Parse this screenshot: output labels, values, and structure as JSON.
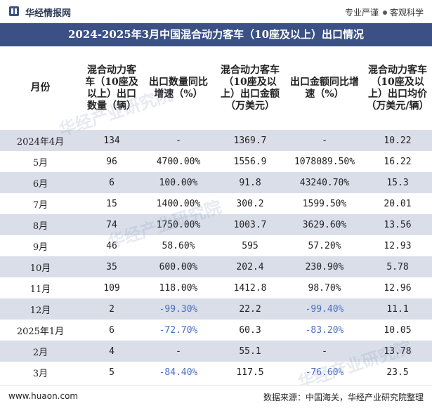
{
  "header": {
    "brand": "华经情报网",
    "slogan_left": "专业严谨",
    "slogan_right": "客观科学"
  },
  "title": "2024-2025年3月中国混合动力客车（10座及以上）出口情况",
  "table": {
    "columns": [
      "月份",
      "混合动力客车（10座及以上）出口数量（辆）",
      "出口数量同比增速（%）",
      "混合动力客车（10座及以上）出口金额（万美元）",
      "出口金额同比增速（%）",
      "混合动力客车（10座及以上）出口均价（万美元/辆）"
    ],
    "rows": [
      {
        "month": "2024年4月",
        "qty": "134",
        "qty_yoy": "-",
        "amount": "1369.7",
        "amount_yoy": "-",
        "price": "10.22"
      },
      {
        "month": "5月",
        "qty": "96",
        "qty_yoy": "4700.00%",
        "amount": "1556.9",
        "amount_yoy": "1078089.50%",
        "price": "16.22"
      },
      {
        "month": "6月",
        "qty": "6",
        "qty_yoy": "100.00%",
        "amount": "91.8",
        "amount_yoy": "43240.70%",
        "price": "15.3"
      },
      {
        "month": "7月",
        "qty": "15",
        "qty_yoy": "1400.00%",
        "amount": "300.2",
        "amount_yoy": "1599.50%",
        "price": "20.01"
      },
      {
        "month": "8月",
        "qty": "74",
        "qty_yoy": "1750.00%",
        "amount": "1003.7",
        "amount_yoy": "3629.60%",
        "price": "13.56"
      },
      {
        "month": "9月",
        "qty": "46",
        "qty_yoy": "58.60%",
        "amount": "595",
        "amount_yoy": "57.20%",
        "price": "12.93"
      },
      {
        "month": "10月",
        "qty": "35",
        "qty_yoy": "600.00%",
        "amount": "202.4",
        "amount_yoy": "230.90%",
        "price": "5.78"
      },
      {
        "month": "11月",
        "qty": "109",
        "qty_yoy": "118.00%",
        "amount": "1412.8",
        "amount_yoy": "98.70%",
        "price": "12.96"
      },
      {
        "month": "12月",
        "qty": "2",
        "qty_yoy": "-99.30%",
        "amount": "22.2",
        "amount_yoy": "-99.40%",
        "price": "11.1"
      },
      {
        "month": "2025年1月",
        "qty": "6",
        "qty_yoy": "-72.70%",
        "amount": "60.3",
        "amount_yoy": "-83.20%",
        "price": "10.05"
      },
      {
        "month": "2月",
        "qty": "4",
        "qty_yoy": "-",
        "amount": "55.1",
        "amount_yoy": "-",
        "price": "13.78"
      },
      {
        "month": "3月",
        "qty": "5",
        "qty_yoy": "-84.40%",
        "amount": "117.5",
        "amount_yoy": "-76.60%",
        "price": "23.5"
      }
    ]
  },
  "footer": {
    "website": "www.huaon.com",
    "source": "数据来源：中国海关，华经产业研究院整理"
  },
  "watermark": "华经产业研究院",
  "colors": {
    "title_bg": "#3b5185",
    "row_stripe": "#d9dee9",
    "negative_text": "#4a6fbf"
  }
}
